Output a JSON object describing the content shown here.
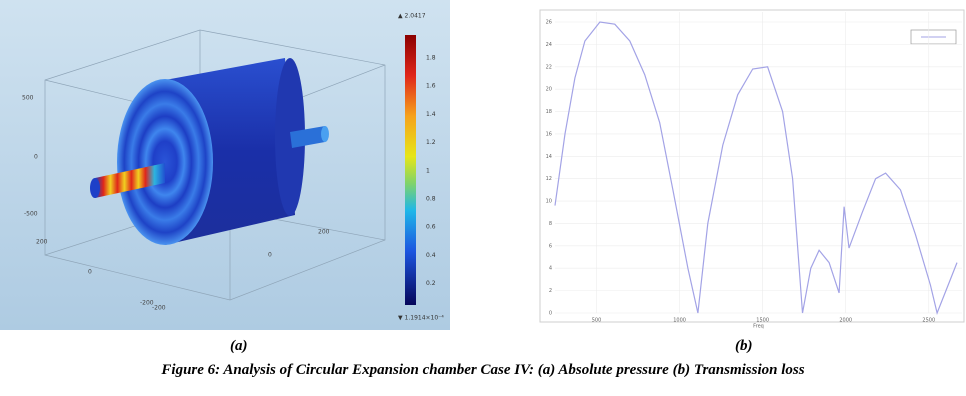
{
  "figure_a": {
    "colorbar_max": "▲ 2.0417",
    "colorbar_min": "▼ 1.1914×10⁻⁴",
    "colorbar_ticks": [
      "1.8",
      "1.6",
      "1.4",
      "1.2",
      "1",
      "0.8",
      "0.6",
      "0.4",
      "0.2"
    ],
    "axis_labels": [
      "500",
      "0",
      "-500",
      "200",
      "0",
      "-200",
      "-200",
      "0",
      "200"
    ],
    "label": "(a)"
  },
  "chart_data": {
    "type": "line",
    "x": [
      250,
      310,
      370,
      430,
      520,
      610,
      700,
      790,
      880,
      960,
      1050,
      1110,
      1170,
      1260,
      1350,
      1440,
      1530,
      1620,
      1680,
      1740,
      1790,
      1840,
      1900,
      1960,
      1990,
      2020,
      2100,
      2180,
      2240,
      2330,
      2420,
      2510,
      2550,
      2630,
      2670
    ],
    "series": [
      {
        "color": "#a3a3e6",
        "values": [
          9.6,
          16,
          21,
          24.3,
          26,
          25.8,
          24.3,
          21.3,
          17,
          11,
          4,
          0,
          8,
          15,
          19.5,
          21.8,
          22,
          18,
          12,
          0,
          4,
          5.6,
          4.5,
          1.8,
          9.5,
          5.8,
          9,
          12,
          12.5,
          11,
          7,
          2.5,
          0,
          3,
          4.5
        ]
      }
    ],
    "xlabel": "Freq",
    "xlim": [
      250,
      2700
    ],
    "xticks": [
      500,
      1000,
      1500,
      2000,
      2500
    ],
    "ylim": [
      0,
      26
    ],
    "yticks": [
      0,
      2,
      4,
      6,
      8,
      10,
      12,
      14,
      16,
      18,
      20,
      22,
      24,
      26
    ],
    "grid": true
  },
  "figure_b_label": "(b)",
  "caption": "Figure 6: Analysis of Circular Expansion chamber Case IV:  (a) Absolute pressure (b) Transmission loss"
}
